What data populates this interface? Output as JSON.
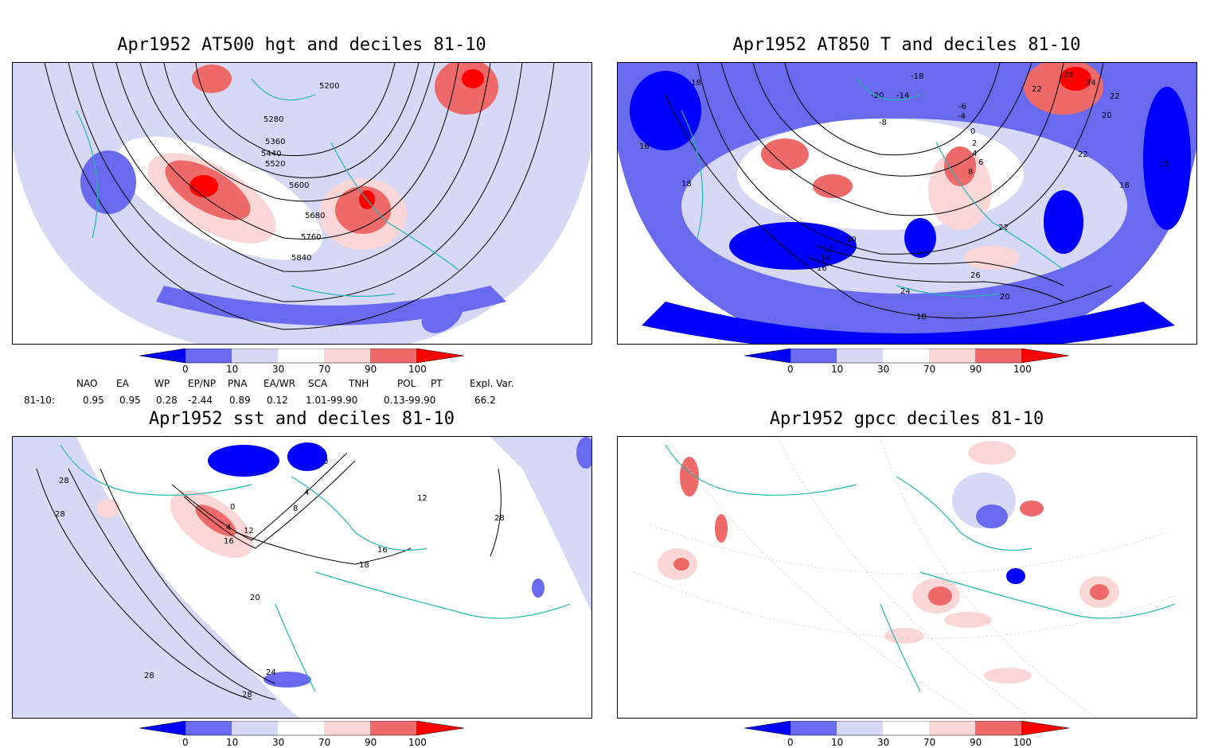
{
  "panels": {
    "p1": {
      "title": "Apr1952 AT500 hgt and deciles 81-10",
      "contour_labels": [
        "5200",
        "5280",
        "5360",
        "5440",
        "5520",
        "5600",
        "5680",
        "5760",
        "5840"
      ]
    },
    "p2": {
      "title": "Apr1952 AT850 T and deciles 81-10",
      "contour_labels": [
        "18",
        "-18",
        "-20",
        "-14",
        "-6",
        "-8",
        "-4",
        "0",
        "2",
        "4",
        "6",
        "8",
        "16",
        "18",
        "10",
        "12",
        "14",
        "16",
        "22",
        "22",
        "20",
        "22",
        "26",
        "24",
        "18",
        "20",
        "26",
        "24",
        "22",
        "16",
        "18"
      ]
    },
    "p3": {
      "title": "Apr1952 sst and deciles 81-10",
      "contour_labels": [
        "28",
        "28",
        "0",
        "4",
        "8",
        "0",
        "4",
        "12",
        "16",
        "16",
        "18",
        "20",
        "24",
        "28",
        "28",
        "12",
        "28"
      ]
    },
    "p4": {
      "title": "Apr1952 gpcc deciles 81-10",
      "contour_labels": []
    }
  },
  "colorbar": {
    "labels": [
      "0",
      "10",
      "30",
      "70",
      "90",
      "100"
    ],
    "colors": [
      "#0000ff",
      "#6a6aee",
      "#d6d8f6",
      "#ffffff",
      "#fad6d6",
      "#ee6a6a",
      "#ff0000"
    ]
  },
  "indices": {
    "headers": [
      "NAO",
      "EA",
      "WP",
      "EP/NP",
      "PNA",
      "EA/WR",
      "SCA",
      "TNH",
      "POL",
      "PT",
      "Expl. Var."
    ],
    "row_label": "81-10:",
    "values": [
      "0.95",
      "0.95",
      "0.28",
      "-2.44",
      "0.89",
      "0.12",
      "1.01-99.90",
      "0.13-99.90",
      "66.2"
    ]
  },
  "colors": {
    "coast": "#20b8b0",
    "contour": "#000000"
  }
}
